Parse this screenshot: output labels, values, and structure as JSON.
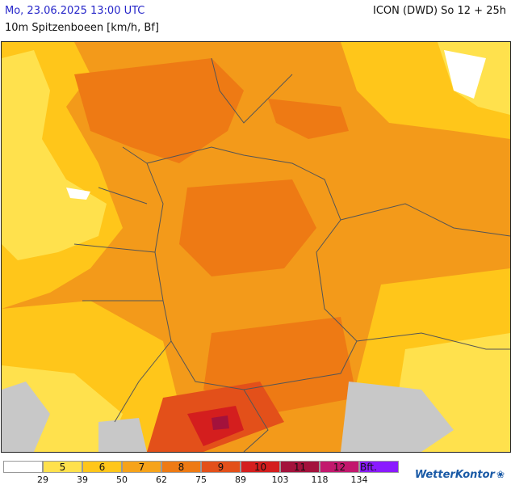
{
  "header": {
    "datetime": "Mo, 23.06.2025 13:00 UTC",
    "parameter": "10m Spitzenboeen [km/h, Bf]",
    "model": "ICON (DWD) So 12 + 25h"
  },
  "legend": {
    "cells": [
      {
        "label": "",
        "color": "#ffffff"
      },
      {
        "label": "5",
        "color": "#ffe14d"
      },
      {
        "label": "6",
        "color": "#ffc61a"
      },
      {
        "label": "7",
        "color": "#f6a31a"
      },
      {
        "label": "8",
        "color": "#ee7a14"
      },
      {
        "label": "9",
        "color": "#e3501a"
      },
      {
        "label": "10",
        "color": "#d41e1e"
      },
      {
        "label": "11",
        "color": "#a3123c"
      },
      {
        "label": "12",
        "color": "#c2186d"
      },
      {
        "label": "Bft.",
        "color": "#8a1aff"
      }
    ],
    "ticks": [
      "29",
      "39",
      "50",
      "62",
      "75",
      "89",
      "103",
      "118",
      "134"
    ]
  },
  "brand": {
    "name": "WetterKontor",
    "mark_icon": "wind-swirl-icon"
  }
}
